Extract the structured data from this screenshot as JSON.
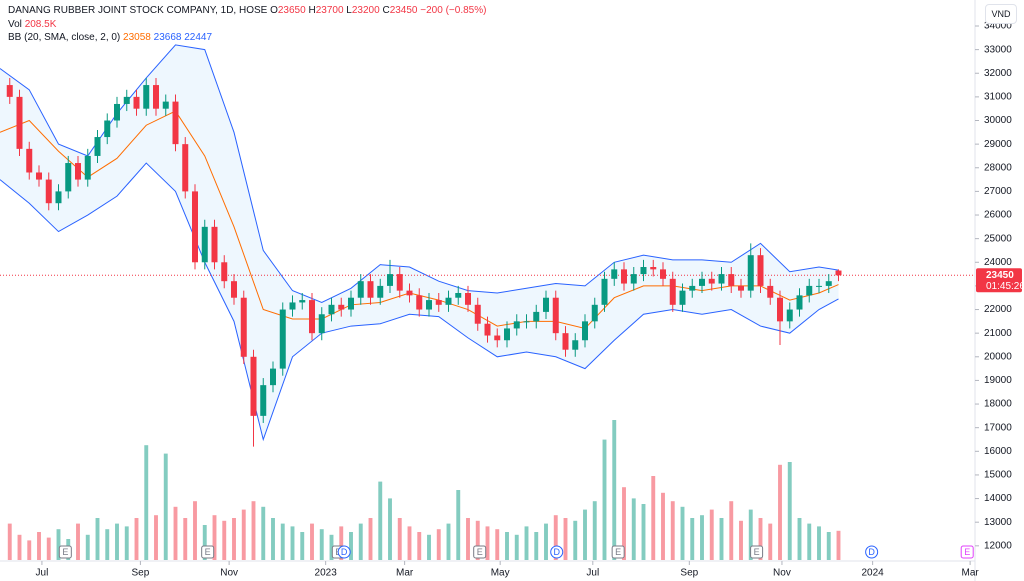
{
  "chart_data": {
    "type": "candlestick",
    "title": "DANANG RUBBER JOINT STOCK COMPANY, 1D, HOSE",
    "ohlc_legend": {
      "o_label": "O",
      "o": 23650,
      "h_label": "H",
      "h": 23700,
      "l_label": "L",
      "l": 23200,
      "c_label": "C",
      "c": 23450,
      "change": "−200 (−0.85%)"
    },
    "volume_legend": {
      "name": "Vol",
      "last": {
        "value": 208500,
        "label": "208.5K"
      }
    },
    "bb_legend": {
      "label": "BB (20, SMA, close, 2, 0)",
      "basis": 23058,
      "upper": 23668,
      "lower": 22447
    },
    "currency": "VND",
    "last_price": 23450,
    "countdown": "01:45:26",
    "up_color": "#089981",
    "down_color": "#f23645",
    "x": [
      1,
      2,
      3,
      4,
      5,
      6,
      7,
      8,
      9,
      10,
      11,
      12,
      13,
      14,
      15,
      16,
      17,
      18,
      19,
      20,
      21,
      22,
      23,
      24,
      25,
      26,
      27,
      28,
      29,
      30,
      31,
      32,
      33,
      34,
      35,
      36,
      37,
      38,
      39,
      40,
      41,
      42,
      43,
      44,
      45,
      46,
      47,
      48,
      49,
      50,
      51,
      52,
      53,
      54,
      55,
      56,
      57,
      58,
      59,
      60,
      61,
      62,
      63,
      64,
      65,
      66,
      67,
      68,
      69,
      70,
      71,
      72,
      73,
      74,
      75,
      76,
      77,
      78,
      79,
      80,
      81,
      82,
      83,
      84,
      85,
      86
    ],
    "open": [
      31500,
      31000,
      28800,
      27800,
      27500,
      26500,
      27000,
      28200,
      27500,
      28500,
      29300,
      30000,
      30700,
      31000,
      30500,
      31500,
      30500,
      30800,
      29000,
      27000,
      24000,
      25500,
      24000,
      23200,
      22500,
      20000,
      17500,
      18800,
      19500,
      22000,
      22300,
      22400,
      21000,
      21800,
      22200,
      22000,
      22500,
      23200,
      22500,
      23000,
      23500,
      22800,
      22600,
      22000,
      22400,
      22200,
      22500,
      22700,
      22200,
      21400,
      20900,
      20700,
      21200,
      21500,
      21500,
      21900,
      22500,
      21000,
      20300,
      20700,
      21500,
      22200,
      23300,
      23700,
      23100,
      23500,
      23800,
      23700,
      23300,
      22200,
      22800,
      23000,
      23300,
      23100,
      23500,
      23000,
      22800,
      24300,
      23000,
      22500,
      21500,
      22000,
      22600,
      23000,
      23000,
      23650
    ],
    "high": [
      31800,
      31300,
      29100,
      28100,
      27800,
      27300,
      28500,
      28500,
      28800,
      29600,
      30300,
      31000,
      31300,
      31300,
      31800,
      31800,
      31100,
      31100,
      29300,
      27300,
      25800,
      25800,
      24300,
      23500,
      22800,
      20300,
      19100,
      19800,
      22300,
      22600,
      22700,
      22700,
      22100,
      22500,
      22500,
      22800,
      23500,
      23500,
      23300,
      24100,
      23800,
      23100,
      22900,
      22700,
      22700,
      22800,
      23000,
      23000,
      22500,
      21700,
      21200,
      21500,
      21800,
      21800,
      22200,
      22800,
      22800,
      21300,
      21000,
      21800,
      22500,
      23600,
      24000,
      24000,
      23800,
      24100,
      24100,
      24000,
      23600,
      23100,
      23300,
      23600,
      23600,
      23800,
      23800,
      23300,
      24800,
      24600,
      23300,
      22800,
      22300,
      22900,
      23300,
      23300,
      23500,
      23700
    ],
    "low": [
      30700,
      28500,
      27500,
      27200,
      26200,
      26200,
      26700,
      27200,
      27200,
      28200,
      29000,
      29700,
      30400,
      30200,
      30200,
      30200,
      30200,
      28700,
      26700,
      23700,
      23700,
      23700,
      22900,
      22200,
      19700,
      16200,
      17200,
      18500,
      19200,
      21700,
      22000,
      20700,
      20700,
      21500,
      21700,
      21700,
      22200,
      22200,
      22200,
      22700,
      22500,
      22300,
      21700,
      21700,
      21900,
      21900,
      22200,
      21900,
      21100,
      20600,
      20400,
      20400,
      20900,
      21200,
      21200,
      21600,
      20700,
      20000,
      20000,
      20400,
      21200,
      21900,
      23000,
      22800,
      22800,
      23200,
      23400,
      23000,
      21900,
      21900,
      22500,
      22700,
      22800,
      22800,
      22700,
      22500,
      22500,
      22700,
      22200,
      20500,
      21200,
      21700,
      22300,
      22700,
      22700,
      23200
    ],
    "close": [
      31000,
      28800,
      27800,
      27500,
      26500,
      27000,
      28200,
      27500,
      28500,
      29300,
      30000,
      30700,
      31000,
      30500,
      31500,
      30500,
      30800,
      29000,
      27000,
      24000,
      25500,
      24000,
      23200,
      22500,
      20000,
      17500,
      18800,
      19500,
      22000,
      22300,
      22400,
      21000,
      21800,
      22200,
      22000,
      22500,
      23200,
      22500,
      23000,
      23500,
      22800,
      22600,
      22000,
      22400,
      22200,
      22500,
      22700,
      22200,
      21400,
      20900,
      20700,
      21200,
      21500,
      21500,
      21900,
      22500,
      21000,
      20300,
      20700,
      21500,
      22200,
      23300,
      23700,
      23100,
      23500,
      23800,
      23700,
      23300,
      22200,
      22800,
      23000,
      23300,
      23100,
      23500,
      23000,
      22800,
      24300,
      23000,
      22500,
      21500,
      22000,
      22600,
      23000,
      23000,
      23200,
      23450
    ],
    "volume": [
      260000,
      180000,
      140000,
      200000,
      160000,
      220000,
      150000,
      260000,
      180000,
      300000,
      220000,
      260000,
      240000,
      300000,
      820000,
      320000,
      760000,
      380000,
      300000,
      420000,
      250000,
      320000,
      280000,
      300000,
      360000,
      420000,
      380000,
      300000,
      260000,
      240000,
      200000,
      260000,
      220000,
      180000,
      240000,
      200000,
      260000,
      300000,
      560000,
      440000,
      300000,
      240000,
      200000,
      180000,
      220000,
      260000,
      500000,
      300000,
      280000,
      240000,
      220000,
      200000,
      180000,
      240000,
      200000,
      260000,
      320000,
      300000,
      280000,
      360000,
      420000,
      860000,
      1000000,
      520000,
      440000,
      400000,
      600000,
      480000,
      420000,
      380000,
      300000,
      320000,
      360000,
      300000,
      420000,
      280000,
      360000,
      300000,
      260000,
      680000,
      700000,
      300000,
      260000,
      240000,
      200000,
      208500
    ],
    "volume_ylim": [
      0,
      1000000
    ],
    "bands": {
      "x": [
        0,
        3,
        6,
        9,
        12,
        15,
        18,
        21,
        24,
        27,
        30,
        33,
        36,
        39,
        42,
        45,
        48,
        51,
        54,
        57,
        60,
        63,
        66,
        69,
        72,
        75,
        78,
        81,
        84,
        86
      ],
      "upper": [
        32200,
        31300,
        29000,
        28500,
        30300,
        31800,
        33200,
        33000,
        29500,
        24500,
        22800,
        22300,
        22900,
        23900,
        23800,
        23200,
        22800,
        22700,
        22900,
        23100,
        23000,
        24000,
        24300,
        24100,
        24100,
        24000,
        24800,
        23600,
        23800,
        23668
      ],
      "basis": [
        29500,
        30000,
        28700,
        27600,
        28400,
        29800,
        30400,
        28500,
        25500,
        22000,
        21600,
        21600,
        22200,
        22300,
        22700,
        22400,
        22000,
        21300,
        21500,
        21500,
        21200,
        22500,
        23000,
        23000,
        22800,
        23000,
        23000,
        22400,
        22700,
        23058
      ],
      "lower": [
        27500,
        26500,
        25300,
        26000,
        26800,
        28200,
        27000,
        24000,
        21500,
        16500,
        20000,
        21000,
        21300,
        21400,
        21800,
        21700,
        20800,
        20000,
        20200,
        20000,
        19500,
        20700,
        21800,
        22000,
        21800,
        22000,
        21300,
        21000,
        22000,
        22447
      ],
      "band_color": "#2962ff",
      "basis_color": "#ff6d00",
      "fill": "rgba(33,150,243,0.08)"
    },
    "events": [
      {
        "label": "E",
        "x": 6.7,
        "color": "#787b86"
      },
      {
        "label": "E",
        "x": 21.3,
        "color": "#787b86"
      },
      {
        "label": "E",
        "x": 34.7,
        "color": "#787b86"
      },
      {
        "label": "D",
        "x": 35.3,
        "color": "#2962ff"
      },
      {
        "label": "E",
        "x": 49.2,
        "color": "#787b86"
      },
      {
        "label": "D",
        "x": 57.1,
        "color": "#2962ff"
      },
      {
        "label": "E",
        "x": 63.4,
        "color": "#787b86"
      },
      {
        "label": "E",
        "x": 77.6,
        "color": "#787b86"
      },
      {
        "label": "D",
        "x": 89.4,
        "color": "#2962ff"
      },
      {
        "label": "E",
        "x": 99.2,
        "color": "#e040fb"
      }
    ],
    "xlim": [
      0,
      100
    ],
    "xticks": [
      {
        "value": 4.3,
        "label": "Jul"
      },
      {
        "value": 14.4,
        "label": "Sep"
      },
      {
        "value": 23.5,
        "label": "Nov"
      },
      {
        "value": 33.4,
        "label": "2023"
      },
      {
        "value": 41.5,
        "label": "Mar"
      },
      {
        "value": 51.3,
        "label": "May"
      },
      {
        "value": 60.8,
        "label": "Jul"
      },
      {
        "value": 70.7,
        "label": "Sep"
      },
      {
        "value": 80.2,
        "label": "Nov"
      },
      {
        "value": 89.5,
        "label": "2024"
      },
      {
        "value": 99.5,
        "label": "Mar"
      }
    ],
    "ylim": [
      11400,
      35100
    ],
    "yticks": [
      12000,
      13000,
      14000,
      15000,
      16000,
      17000,
      18000,
      19000,
      20000,
      21000,
      22000,
      23000,
      24000,
      25000,
      26000,
      27000,
      28000,
      29000,
      30000,
      31000,
      32000,
      33000,
      34000
    ]
  }
}
